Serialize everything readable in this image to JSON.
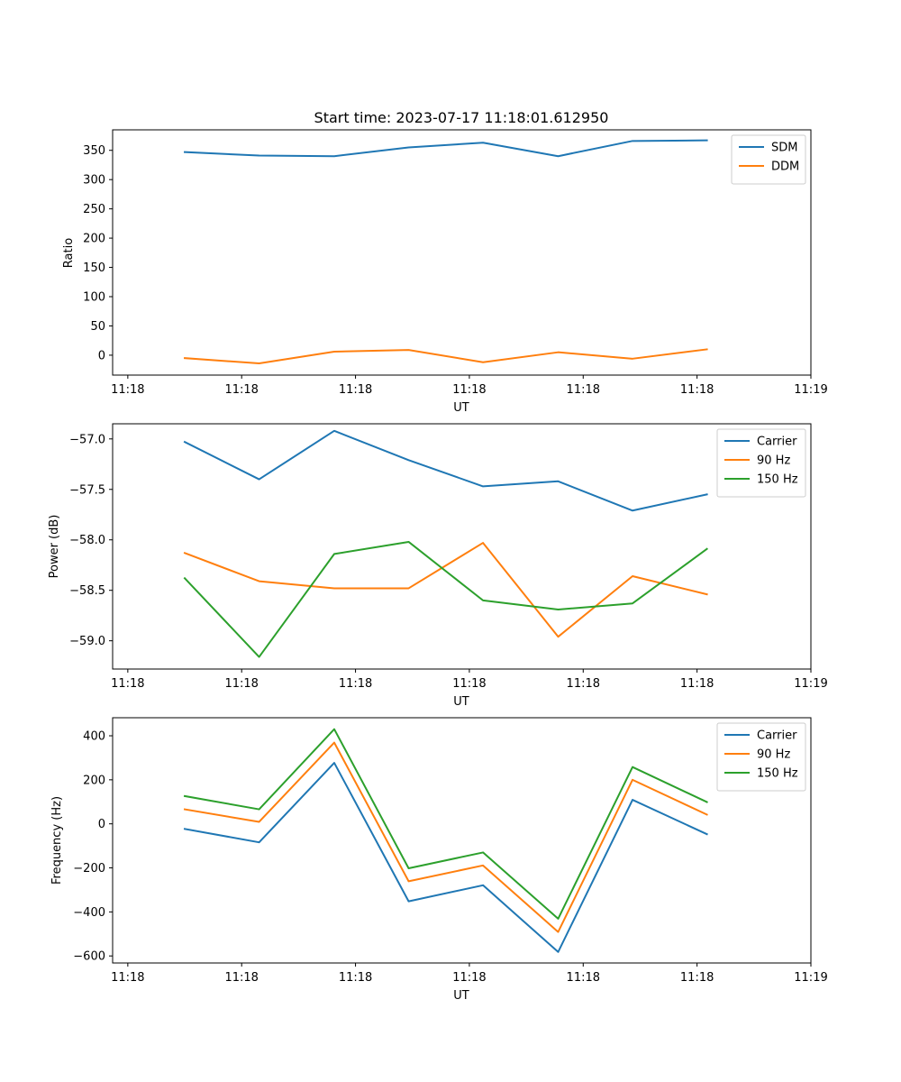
{
  "colors": {
    "blue": "#1f77b4",
    "orange": "#ff7f0e",
    "green": "#2ca02c"
  },
  "chart_data": [
    {
      "type": "line",
      "title": "Start time: 2023-07-17 11:18:01.612950",
      "xlabel": "UT",
      "ylabel": "Ratio",
      "ylim": [
        -34,
        385
      ],
      "yticks": [
        0,
        50,
        100,
        150,
        200,
        250,
        300,
        350
      ],
      "xlim": [
        -0.2,
        9.0
      ],
      "xtick_positions": [
        0,
        1.5,
        3,
        4.5,
        6,
        7.5,
        9
      ],
      "xtick_labels": [
        "11:18",
        "11:18",
        "11:18",
        "11:18",
        "11:18",
        "11:18",
        "11:19"
      ],
      "x": [
        0.75,
        1.73,
        2.72,
        3.7,
        4.68,
        5.67,
        6.65,
        7.63
      ],
      "series": [
        {
          "name": "SDM",
          "color": "#1f77b4",
          "values": [
            347,
            341,
            340,
            355,
            363,
            340,
            366,
            367
          ]
        },
        {
          "name": "DDM",
          "color": "#ff7f0e",
          "values": [
            -5,
            -14,
            6,
            9,
            -12,
            5,
            -6,
            10
          ]
        }
      ],
      "legend": "top-right"
    },
    {
      "type": "line",
      "title": "",
      "xlabel": "UT",
      "ylabel": "Power (dB)",
      "ylim": [
        -59.28,
        -56.85
      ],
      "yticks": [
        -59.0,
        -58.5,
        -58.0,
        -57.5,
        -57.0
      ],
      "ytick_labels": [
        "−59.0",
        "−58.5",
        "−58.0",
        "−57.5",
        "−57.0"
      ],
      "xlim": [
        -0.2,
        9.0
      ],
      "xtick_positions": [
        0,
        1.5,
        3,
        4.5,
        6,
        7.5,
        9
      ],
      "xtick_labels": [
        "11:18",
        "11:18",
        "11:18",
        "11:18",
        "11:18",
        "11:18",
        "11:19"
      ],
      "x": [
        0.75,
        1.73,
        2.72,
        3.7,
        4.68,
        5.67,
        6.65,
        7.63
      ],
      "series": [
        {
          "name": "Carrier",
          "color": "#1f77b4",
          "values": [
            -57.03,
            -57.4,
            -56.92,
            -57.21,
            -57.47,
            -57.42,
            -57.71,
            -57.55
          ]
        },
        {
          "name": "90 Hz",
          "color": "#ff7f0e",
          "values": [
            -58.13,
            -58.41,
            -58.48,
            -58.48,
            -58.03,
            -58.96,
            -58.36,
            -58.54
          ]
        },
        {
          "name": "150 Hz",
          "color": "#2ca02c",
          "values": [
            -58.38,
            -59.16,
            -58.14,
            -58.02,
            -58.6,
            -58.69,
            -58.63,
            -58.09
          ]
        }
      ],
      "legend": "top-right"
    },
    {
      "type": "line",
      "title": "",
      "xlabel": "UT",
      "ylabel": "Frequency (Hz)",
      "ylim": [
        -632,
        482
      ],
      "yticks": [
        -600,
        -400,
        -200,
        0,
        200,
        400
      ],
      "ytick_labels": [
        "−600",
        "−400",
        "−200",
        "0",
        "200",
        "400"
      ],
      "xlim": [
        -0.2,
        9.0
      ],
      "xtick_positions": [
        0,
        1.5,
        3,
        4.5,
        6,
        7.5,
        9
      ],
      "xtick_labels": [
        "11:18",
        "11:18",
        "11:18",
        "11:18",
        "11:18",
        "11:18",
        "11:19"
      ],
      "x": [
        0.75,
        1.73,
        2.72,
        3.7,
        4.68,
        5.67,
        6.65,
        7.63
      ],
      "series": [
        {
          "name": "Carrier",
          "color": "#1f77b4",
          "values": [
            -23,
            -84,
            277,
            -352,
            -279,
            -582,
            109,
            -47
          ]
        },
        {
          "name": "90 Hz",
          "color": "#ff7f0e",
          "values": [
            66,
            9,
            369,
            -261,
            -189,
            -491,
            200,
            42
          ]
        },
        {
          "name": "150 Hz",
          "color": "#2ca02c",
          "values": [
            126,
            66,
            430,
            -202,
            -130,
            -431,
            258,
            99
          ]
        }
      ],
      "legend": "top-right"
    }
  ]
}
